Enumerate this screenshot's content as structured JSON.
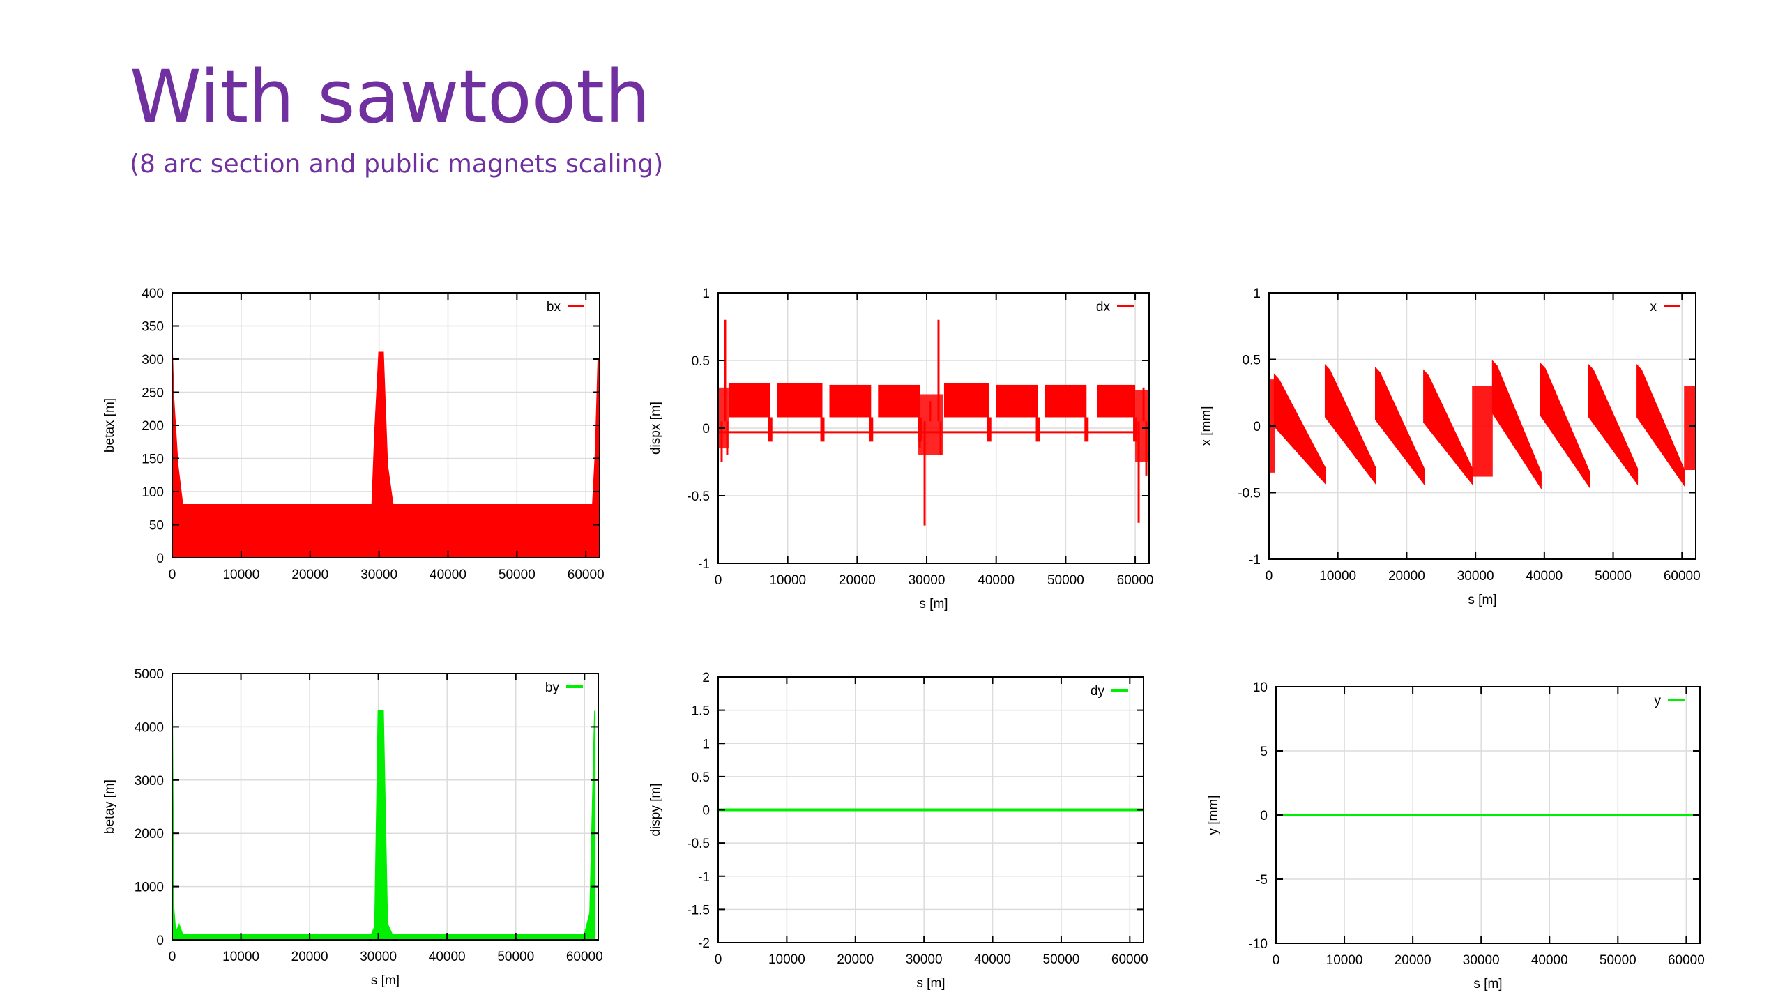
{
  "slide": {
    "title": "With sawtooth",
    "subtitle": "(8 arc section and public magnets scaling)"
  },
  "colors": {
    "title": "#7030a0",
    "red_series": "#ff0000",
    "green_series": "#00ee00",
    "grid": "#d9d9d9"
  },
  "chart_data": [
    {
      "id": "betax",
      "type": "line",
      "grid": true,
      "legend_position": "top-right",
      "xlabel": "",
      "ylabel": "betax [m]",
      "xlim": [
        0,
        62000
      ],
      "ylim": [
        0,
        400
      ],
      "xticks": [
        0,
        10000,
        20000,
        30000,
        40000,
        50000,
        60000
      ],
      "yticks": [
        0,
        50,
        100,
        150,
        200,
        250,
        300,
        350,
        400
      ],
      "series": [
        {
          "name": "bx",
          "color": "#ff0000",
          "style": "band",
          "x": [
            0,
            200,
            800,
            1500,
            2000,
            29000,
            29400,
            30000,
            30600,
            31200,
            32000,
            60000,
            61000,
            61400,
            61800
          ],
          "high": [
            310,
            240,
            140,
            80,
            80,
            80,
            190,
            310,
            310,
            140,
            80,
            80,
            80,
            160,
            300
          ],
          "low": [
            0,
            0,
            0,
            0,
            0,
            0,
            0,
            0,
            0,
            0,
            0,
            0,
            0,
            0,
            0
          ]
        }
      ]
    },
    {
      "id": "dispx",
      "type": "line",
      "grid": true,
      "legend_position": "top-right",
      "xlabel": "s [m]",
      "ylabel": "dispx [m]",
      "xlim": [
        0,
        62000
      ],
      "ylim": [
        -1,
        1
      ],
      "xticks": [
        0,
        10000,
        20000,
        30000,
        40000,
        50000,
        60000
      ],
      "yticks": [
        -1,
        -0.5,
        0,
        0.5,
        1
      ],
      "series": [
        {
          "name": "dx",
          "color": "#ff0000",
          "style": "segments",
          "arc_segments": [
            {
              "x0": 1500,
              "x1": 7500,
              "high": 0.33,
              "low": 0.08
            },
            {
              "x0": 8500,
              "x1": 15000,
              "high": 0.33,
              "low": 0.08
            },
            {
              "x0": 16000,
              "x1": 22000,
              "high": 0.32,
              "low": 0.08
            },
            {
              "x0": 23000,
              "x1": 29000,
              "high": 0.32,
              "low": 0.08
            },
            {
              "x0": 32500,
              "x1": 39000,
              "high": 0.33,
              "low": 0.08
            },
            {
              "x0": 40000,
              "x1": 46000,
              "high": 0.32,
              "low": 0.08
            },
            {
              "x0": 47000,
              "x1": 53000,
              "high": 0.32,
              "low": 0.08
            },
            {
              "x0": 54500,
              "x1": 60000,
              "high": 0.32,
              "low": 0.08
            }
          ],
          "baseline": -0.03,
          "spikes": [
            {
              "x": 500,
              "y": -0.25
            },
            {
              "x": 1000,
              "y": 0.8
            },
            {
              "x": 1300,
              "y": -0.2
            },
            {
              "x": 29000,
              "y": -0.15
            },
            {
              "x": 29700,
              "y": -0.72
            },
            {
              "x": 30500,
              "y": 0.2
            },
            {
              "x": 31700,
              "y": 0.8
            },
            {
              "x": 32000,
              "y": -0.2
            },
            {
              "x": 60500,
              "y": -0.7
            },
            {
              "x": 61200,
              "y": 0.3
            },
            {
              "x": 61600,
              "y": -0.35
            }
          ]
        }
      ]
    },
    {
      "id": "x",
      "type": "line",
      "grid": true,
      "legend_position": "top-right",
      "xlabel": "s [m]",
      "ylabel": "x [mm]",
      "xlim": [
        0,
        62000
      ],
      "ylim": [
        -1,
        1
      ],
      "xticks": [
        0,
        10000,
        20000,
        30000,
        40000,
        50000,
        60000
      ],
      "yticks": [
        -1,
        -0.5,
        0,
        0.5,
        1
      ],
      "series": [
        {
          "name": "x",
          "color": "#ff0000",
          "style": "sawtooth",
          "teeth": [
            {
              "x0": 800,
              "x1": 8200,
              "y0": 0.35,
              "y1": -0.43
            },
            {
              "x0": 8200,
              "x1": 15500,
              "y0": 0.42,
              "y1": -0.43
            },
            {
              "x0": 15500,
              "x1": 22500,
              "y0": 0.4,
              "y1": -0.43
            },
            {
              "x0": 22500,
              "x1": 29500,
              "y0": 0.38,
              "y1": -0.43
            },
            {
              "x0": 32500,
              "x1": 39500,
              "y0": 0.45,
              "y1": -0.46
            },
            {
              "x0": 39500,
              "x1": 46500,
              "y0": 0.43,
              "y1": -0.45
            },
            {
              "x0": 46500,
              "x1": 53500,
              "y0": 0.42,
              "y1": -0.43
            },
            {
              "x0": 53500,
              "x1": 60300,
              "y0": 0.42,
              "y1": -0.44
            }
          ],
          "thickness": 0.22
        }
      ]
    },
    {
      "id": "betay",
      "type": "line",
      "grid": true,
      "legend_position": "top-right",
      "xlabel": "s [m]",
      "ylabel": "betay [m]",
      "xlim": [
        0,
        62000
      ],
      "ylim": [
        0,
        5000
      ],
      "xticks": [
        0,
        10000,
        20000,
        30000,
        40000,
        50000,
        60000
      ],
      "yticks": [
        0,
        1000,
        2000,
        3000,
        4000,
        5000
      ],
      "series": [
        {
          "name": "by",
          "color": "#00ee00",
          "style": "band",
          "x": [
            0,
            200,
            500,
            1000,
            1500,
            29000,
            29500,
            30000,
            30700,
            31300,
            32000,
            60000,
            60800,
            61500
          ],
          "high": [
            4300,
            600,
            120,
            280,
            100,
            100,
            250,
            4300,
            4300,
            300,
            100,
            100,
            500,
            4300
          ],
          "low": [
            0,
            0,
            0,
            0,
            0,
            0,
            0,
            0,
            0,
            0,
            0,
            0,
            0,
            0
          ]
        }
      ]
    },
    {
      "id": "dispy",
      "type": "line",
      "grid": true,
      "legend_position": "top-right",
      "xlabel": "s [m]",
      "ylabel": "dispy [m]",
      "xlim": [
        0,
        62000
      ],
      "ylim": [
        -2,
        2
      ],
      "xticks": [
        0,
        10000,
        20000,
        30000,
        40000,
        50000,
        60000
      ],
      "yticks": [
        -2,
        -1.5,
        -1,
        -0.5,
        0,
        0.5,
        1,
        1.5,
        2
      ],
      "series": [
        {
          "name": "dy",
          "color": "#00ee00",
          "style": "line",
          "x": [
            0,
            62000
          ],
          "y": [
            0,
            0
          ]
        }
      ]
    },
    {
      "id": "y",
      "type": "line",
      "grid": true,
      "legend_position": "top-right",
      "xlabel": "s [m]",
      "ylabel": "y [mm]",
      "xlim": [
        0,
        62000
      ],
      "ylim": [
        -10,
        10
      ],
      "xticks": [
        0,
        10000,
        20000,
        30000,
        40000,
        50000,
        60000
      ],
      "yticks": [
        -10,
        -5,
        0,
        5,
        10
      ],
      "series": [
        {
          "name": "y",
          "color": "#00ee00",
          "style": "line",
          "x": [
            0,
            62000
          ],
          "y": [
            0,
            0
          ]
        }
      ]
    }
  ]
}
